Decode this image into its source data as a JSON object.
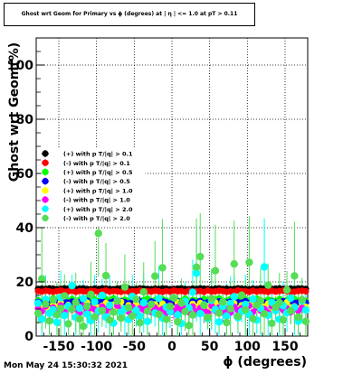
{
  "footer": {
    "date": "Mon May 24 15:30:32 2021"
  },
  "chart_data": {
    "type": "scatter",
    "title": "Ghost wrt Geom for Primary vs ϕ (degrees) at | η | <= 1.0 at pT > 0.11",
    "xlabel": "ϕ (degrees)",
    "ylabel": "Ghost wrt Geom(%)",
    "xlim": [
      -180,
      180
    ],
    "ylim": [
      0,
      110
    ],
    "x_ticks": [
      "-150",
      "-100",
      "-50",
      "0",
      "50",
      "100",
      "150"
    ],
    "y_ticks": [
      "0",
      "20",
      "40",
      "60",
      "80",
      "100"
    ],
    "grid": true,
    "legend_placement": "middle-left",
    "n_bins": 72,
    "series": [
      {
        "name": "(+) with p T/|q| > 0.1",
        "color": "#000000",
        "values": [
          17.4,
          17.5,
          17.4,
          17.6,
          17.5,
          17.3,
          17.4,
          17.6,
          17.5,
          17.3,
          17.4,
          17.5,
          17.6,
          17.4,
          17.3,
          17.5,
          17.4,
          17.6,
          17.5,
          17.4,
          17.3,
          17.5,
          17.6,
          17.4,
          17.5,
          17.3,
          17.4,
          17.6,
          17.5,
          17.4,
          17.3,
          17.5,
          17.4,
          17.6,
          17.5,
          17.3,
          17.4,
          17.5,
          17.6,
          17.4,
          17.3,
          17.5,
          17.4,
          17.6,
          17.5,
          17.4,
          17.3,
          17.5,
          17.6,
          17.4,
          17.5,
          17.3,
          17.4,
          17.6,
          17.5,
          17.4,
          17.3,
          17.5,
          17.4,
          17.6,
          17.5,
          17.3,
          17.4,
          17.5,
          17.6,
          17.4,
          17.3,
          17.5,
          17.4,
          17.6,
          17.5,
          17.4
        ]
      },
      {
        "name": "(-) with p T/|q| > 0.1",
        "color": "#ff0000",
        "values": [
          16.6,
          16.4,
          16.7,
          16.5,
          16.3,
          16.6,
          16.8,
          16.4,
          16.5,
          16.7,
          16.3,
          16.6,
          16.5,
          16.4,
          16.7,
          16.6,
          16.3,
          16.5,
          16.8,
          16.4,
          16.6,
          16.5,
          16.3,
          16.7,
          16.4,
          16.6,
          16.5,
          16.8,
          16.3,
          16.6,
          16.4,
          16.7,
          16.5,
          16.3,
          16.6,
          16.4,
          16.8,
          16.5,
          16.6,
          16.3,
          16.7,
          16.4,
          16.5,
          16.6,
          16.3,
          16.8,
          16.4,
          16.5,
          16.7,
          16.6,
          16.3,
          16.5,
          16.4,
          16.8,
          16.6,
          16.5,
          16.3,
          16.7,
          16.4,
          16.6,
          16.5,
          16.3,
          16.7,
          16.4,
          16.6,
          16.8,
          16.5,
          16.3,
          16.4,
          16.6,
          16.7,
          16.5
        ]
      },
      {
        "name": "(+) with p T/|q| > 0.5",
        "color": "#00ff00",
        "values": [
          13.2,
          12.8,
          13.6,
          12.5,
          13.9,
          13.1,
          12.7,
          13.4,
          12.9,
          13.7,
          12.6,
          13.3,
          13.0,
          13.8,
          12.4,
          13.5,
          12.8,
          13.2,
          13.6,
          12.7,
          13.9,
          13.0,
          12.5,
          13.4,
          13.1,
          12.9,
          13.7,
          12.6,
          13.3,
          13.8,
          12.8,
          13.2,
          12.4,
          13.6,
          13.0,
          12.7,
          13.5,
          13.1,
          12.9,
          13.8,
          12.6,
          13.3,
          13.0,
          12.5,
          13.7,
          13.2,
          12.8,
          13.4,
          13.9,
          12.7,
          13.1,
          13.6,
          12.6,
          13.3,
          12.9,
          13.5,
          13.0,
          12.4,
          13.8,
          13.2,
          12.7,
          13.4,
          13.1,
          12.9,
          13.6,
          12.5,
          13.3,
          13.0,
          13.7,
          12.8,
          13.2,
          12.9
        ]
      },
      {
        "name": "(-) with p T/|q| > 0.5",
        "color": "#0000ff",
        "values": [
          12.6,
          12.2,
          13.0,
          11.9,
          12.8,
          12.4,
          12.1,
          12.9,
          12.3,
          12.7,
          11.8,
          12.5,
          12.2,
          13.1,
          12.0,
          12.6,
          12.4,
          12.8,
          11.9,
          12.3,
          12.7,
          12.1,
          12.9,
          12.5,
          12.0,
          12.6,
          12.2,
          12.8,
          12.4,
          11.9,
          12.7,
          12.3,
          12.1,
          12.9,
          12.5,
          12.0,
          12.6,
          12.8,
          12.2,
          12.4,
          11.8,
          12.7,
          12.3,
          12.9,
          12.1,
          12.5,
          12.6,
          12.0,
          12.8,
          12.2,
          12.4,
          12.7,
          11.9,
          12.5,
          12.3,
          12.9,
          12.1,
          12.6,
          12.2,
          12.8,
          12.4,
          12.0,
          12.7,
          12.3,
          12.5,
          12.9,
          12.1,
          12.6,
          12.2,
          12.4,
          12.8,
          12.3
        ]
      },
      {
        "name": "(+) with p T/|q| > 1.0",
        "color": "#ffff00",
        "values": [
          11.3,
          10.4,
          12.1,
          9.8,
          11.7,
          10.9,
          12.5,
          10.2,
          11.5,
          9.6,
          12.0,
          10.7,
          11.1,
          12.4,
          9.9,
          11.8,
          10.5,
          11.2,
          12.2,
          10.0,
          11.6,
          10.8,
          12.6,
          9.7,
          11.4,
          10.3,
          11.9,
          10.6,
          12.3,
          11.0,
          9.9,
          11.7,
          10.4,
          12.0,
          10.9,
          11.3,
          9.8,
          12.5,
          10.6,
          11.5,
          10.1,
          11.9,
          10.8,
          12.2,
          9.7,
          11.1,
          10.5,
          12.4,
          11.0,
          10.2,
          11.8,
          10.7,
          12.1,
          9.9,
          11.4,
          10.3,
          11.6,
          12.3,
          10.0,
          11.2,
          10.9,
          12.0,
          9.8,
          11.7,
          10.4,
          11.3,
          12.5,
          10.6,
          11.0,
          10.1,
          11.9,
          10.8
        ]
      },
      {
        "name": "(-) with p T/|q| > 1.0",
        "color": "#ff00ff",
        "values": [
          10.2,
          9.1,
          11.0,
          8.6,
          10.5,
          9.4,
          11.3,
          8.9,
          10.7,
          9.6,
          10.0,
          8.5,
          11.1,
          9.3,
          10.4,
          9.8,
          8.8,
          10.9,
          9.2,
          10.6,
          8.7,
          11.2,
          9.5,
          10.1,
          9.0,
          10.8,
          8.6,
          10.3,
          9.7,
          11.0,
          8.9,
          10.5,
          9.4,
          10.0,
          8.5,
          11.3,
          9.2,
          10.7,
          9.6,
          10.2,
          8.8,
          10.9,
          9.1,
          10.4,
          9.9,
          8.7,
          11.1,
          9.3,
          10.6,
          9.0,
          10.1,
          8.6,
          10.8,
          9.5,
          10.3,
          9.8,
          11.2,
          8.9,
          10.5,
          9.4,
          10.0,
          8.7,
          11.0,
          9.2,
          10.6,
          9.6,
          10.2,
          8.8,
          10.9,
          9.3,
          10.4,
          9.7
        ]
      },
      {
        "name": "(+) with p T/|q| > 2.0",
        "color": "#00ffff",
        "values": [
          12.1,
          6.3,
          13.5,
          8.4,
          9.7,
          5.1,
          14.2,
          7.6,
          11.0,
          18.6,
          6.9,
          10.3,
          13.8,
          8.1,
          5.7,
          12.6,
          9.2,
          15.0,
          7.0,
          11.4,
          4.8,
          13.1,
          8.8,
          10.0,
          6.1,
          14.6,
          9.5,
          7.3,
          12.3,
          5.4,
          11.8,
          8.5,
          13.9,
          6.6,
          10.7,
          9.0,
          14.1,
          7.8,
          4.6,
          12.8,
          10.4,
          16.2,
          23.2,
          8.3,
          11.5,
          6.4,
          13.2,
          9.8,
          5.2,
          10.9,
          7.4,
          12.0,
          14.5,
          6.8,
          9.1,
          11.7,
          8.0,
          13.6,
          5.9,
          10.2,
          25.5,
          7.7,
          12.4,
          9.4,
          6.2,
          11.2,
          8.6,
          14.0,
          10.6,
          5.5,
          12.9,
          9.6
        ]
      },
      {
        "name": "(-) with p T/|q| > 2.0",
        "color": "#55dd55",
        "values": [
          8.4,
          21.1,
          11.8,
          5.6,
          13.3,
          7.9,
          10.2,
          14.8,
          4.5,
          9.9,
          12.4,
          6.3,
          3.6,
          11.0,
          15.4,
          7.1,
          37.9,
          9.4,
          22.3,
          5.9,
          8.8,
          12.9,
          6.6,
          18.1,
          10.5,
          7.4,
          13.6,
          4.9,
          16.3,
          9.2,
          11.7,
          22.1,
          8.0,
          25.2,
          6.2,
          10.9,
          14.1,
          5.3,
          12.2,
          9.0,
          3.9,
          7.8,
          25.4,
          29.3,
          11.3,
          6.9,
          13.8,
          24.1,
          8.5,
          12.6,
          5.0,
          10.1,
          26.6,
          7.3,
          15.1,
          9.7,
          27.2,
          6.4,
          11.5,
          13.0,
          8.2,
          18.8,
          4.7,
          10.6,
          12.3,
          6.0,
          17.0,
          9.3,
          22.2,
          7.0,
          13.4,
          5.4
        ]
      }
    ]
  }
}
